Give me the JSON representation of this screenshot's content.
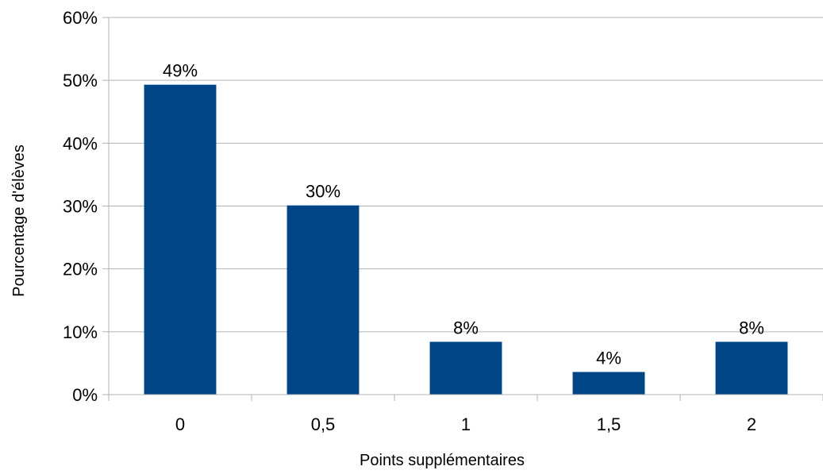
{
  "chart_data": {
    "type": "bar",
    "categories": [
      "0",
      "0,5",
      "1",
      "1,5",
      "2"
    ],
    "values": [
      49.3,
      30.1,
      8.4,
      3.6,
      8.4
    ],
    "data_labels": [
      "49%",
      "30%",
      "8%",
      "4%",
      "8%"
    ],
    "xlabel": "Points supplémentaires",
    "ylabel": "Pourcentage d'élèves",
    "ylim": [
      0,
      60
    ],
    "yticks": [
      0,
      10,
      20,
      30,
      40,
      50,
      60
    ],
    "ytick_labels": [
      "0%",
      "10%",
      "20%",
      "30%",
      "40%",
      "50%",
      "60%"
    ],
    "grid": true,
    "legend": "none",
    "colors": {
      "bar": "#004586",
      "grid": "#b3b3b3",
      "axis": "#b3b3b3"
    }
  }
}
